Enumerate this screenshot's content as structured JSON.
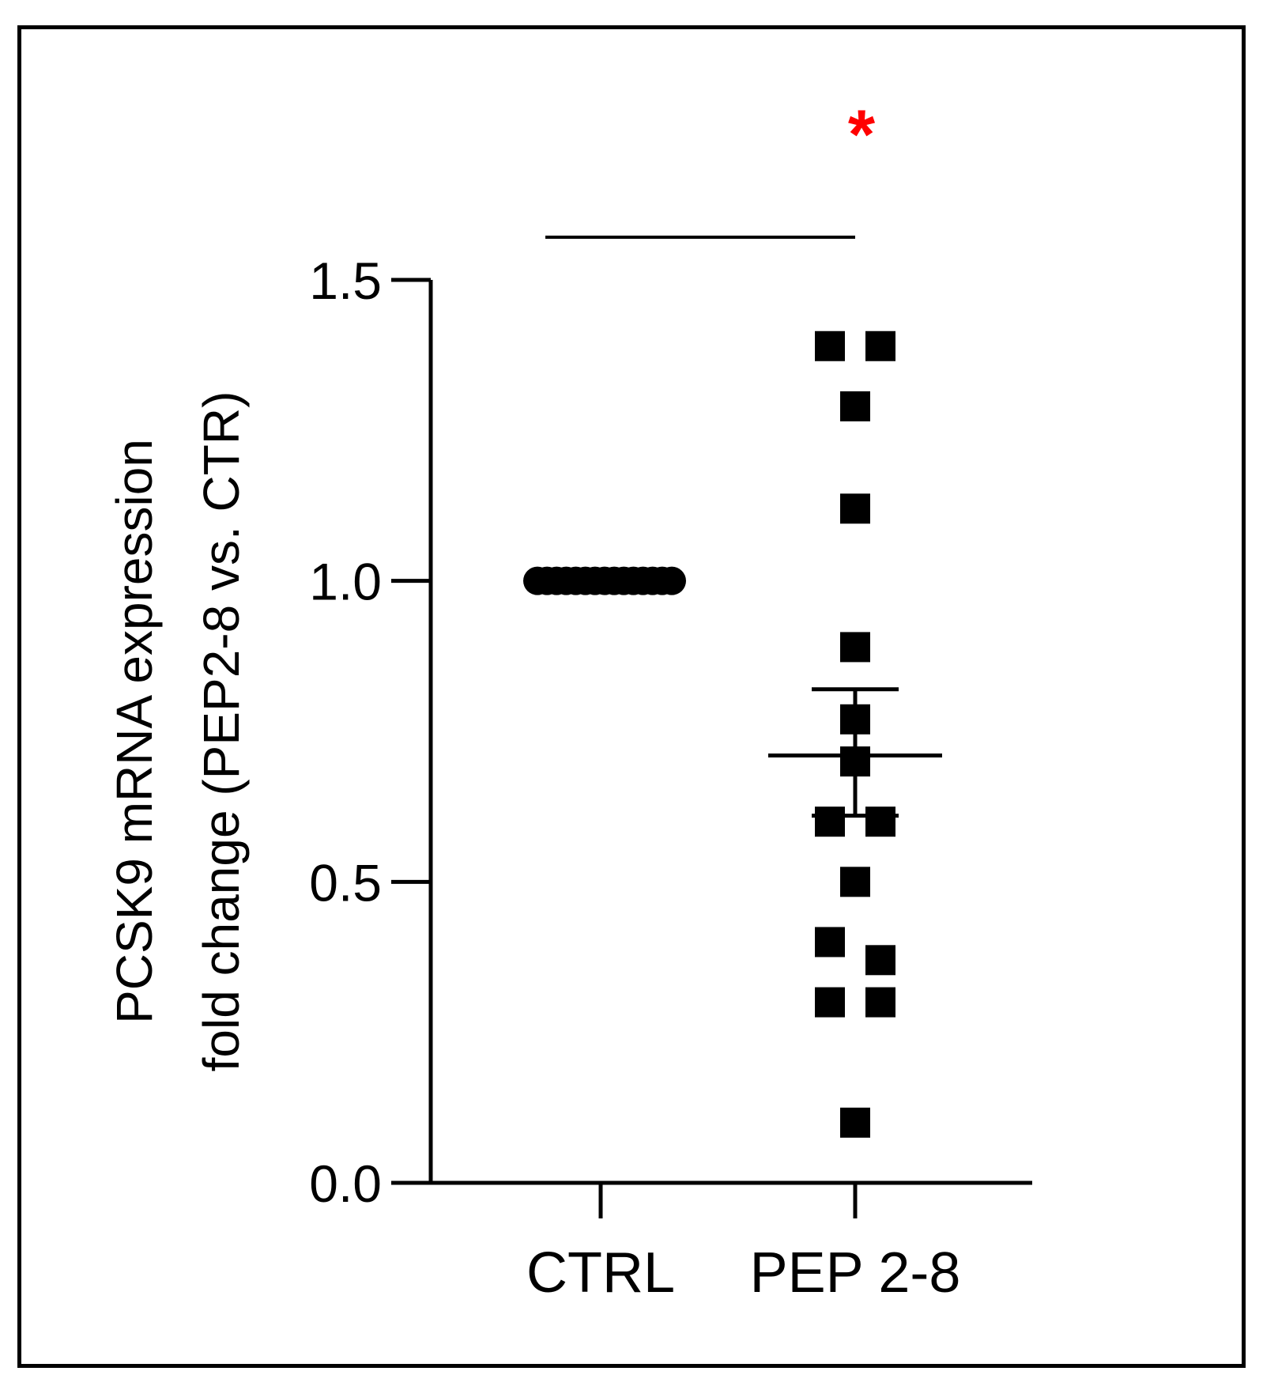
{
  "chart_data": {
    "type": "scatter",
    "title": "",
    "ylabel_line1": "PCSK9 mRNA expression",
    "ylabel_line2": "fold change (PEP2-8 vs. CTR)",
    "xlabel": "",
    "categories": [
      "CTRL",
      "PEP 2-8"
    ],
    "ylim": [
      0,
      1.5
    ],
    "yticks": [
      "0.0",
      "0.5",
      "1.0",
      "1.5"
    ],
    "grid": false,
    "series": [
      {
        "category": "CTRL",
        "values": [
          1.0,
          1.0,
          1.0,
          1.0,
          1.0,
          1.0,
          1.0,
          1.0,
          1.0,
          1.0,
          1.0,
          1.0,
          1.0,
          1.0,
          1.0
        ],
        "marker": "circle"
      },
      {
        "category": "PEP 2-8",
        "values": [
          1.39,
          1.39,
          1.29,
          1.12,
          0.89,
          0.77,
          0.7,
          0.6,
          0.6,
          0.5,
          0.4,
          0.37,
          0.3,
          0.3,
          0.1
        ],
        "marker": "square",
        "mean": 0.71,
        "sem_upper": 0.82,
        "sem_lower": 0.61
      }
    ],
    "significance": {
      "marker": "*",
      "color": "#ff0000",
      "between": [
        "CTRL",
        "PEP 2-8"
      ]
    }
  }
}
